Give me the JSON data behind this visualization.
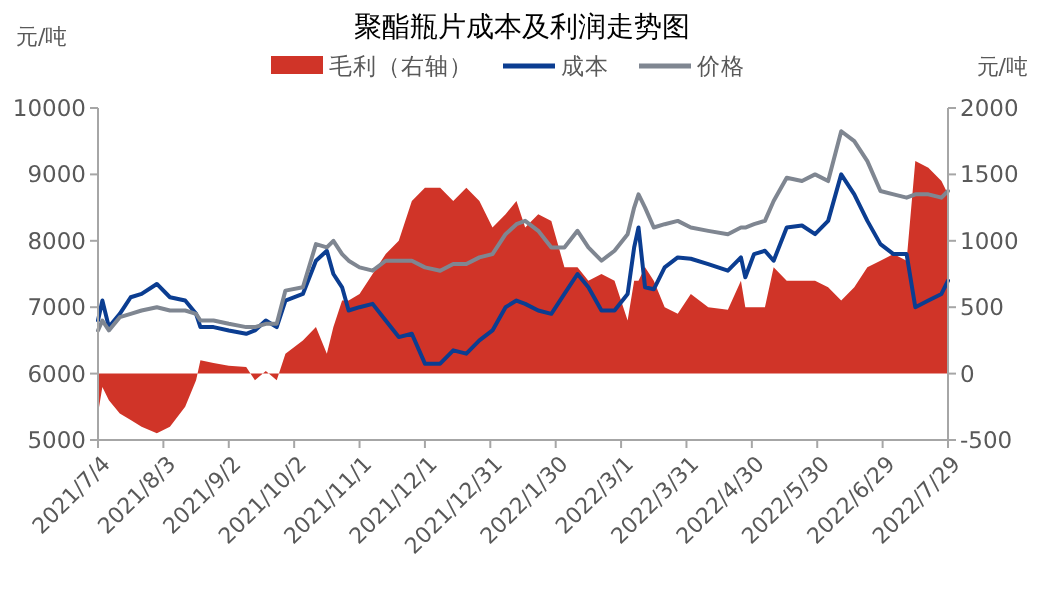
{
  "chart_data": {
    "type": "line",
    "title": "聚酯瓶片成本及利润走势图",
    "ylabel": "元/吨",
    "y2label": "元/吨",
    "legend": "top",
    "grid": false,
    "x": [
      "2021-07-04",
      "2021-07-06",
      "2021-07-09",
      "2021-07-14",
      "2021-07-19",
      "2021-07-24",
      "2021-07-31",
      "2021-08-06",
      "2021-08-13",
      "2021-08-18",
      "2021-08-20",
      "2021-08-26",
      "2021-09-02",
      "2021-09-10",
      "2021-09-14",
      "2021-09-19",
      "2021-09-24",
      "2021-09-28",
      "2021-10-06",
      "2021-10-12",
      "2021-10-17",
      "2021-10-20",
      "2021-10-24",
      "2021-10-27",
      "2021-11-01",
      "2021-11-07",
      "2021-11-13",
      "2021-11-19",
      "2021-11-25",
      "2021-12-01",
      "2021-12-08",
      "2021-12-14",
      "2021-12-20",
      "2021-12-26",
      "2022-01-01",
      "2022-01-07",
      "2022-01-12",
      "2022-01-16",
      "2022-01-22",
      "2022-01-28",
      "2022-02-03",
      "2022-02-09",
      "2022-02-14",
      "2022-02-20",
      "2022-02-26",
      "2022-03-04",
      "2022-03-07",
      "2022-03-09",
      "2022-03-12",
      "2022-03-16",
      "2022-03-21",
      "2022-03-27",
      "2022-04-02",
      "2022-04-10",
      "2022-04-19",
      "2022-04-25",
      "2022-04-27",
      "2022-05-01",
      "2022-05-06",
      "2022-05-10",
      "2022-05-16",
      "2022-05-23",
      "2022-05-29",
      "2022-06-04",
      "2022-06-10",
      "2022-06-16",
      "2022-06-22",
      "2022-06-28",
      "2022-07-04",
      "2022-07-10",
      "2022-07-14",
      "2022-07-20",
      "2022-07-26",
      "2022-07-29"
    ],
    "series": [
      {
        "name": "毛利（右轴）",
        "type": "area",
        "axis": "y2",
        "color": "#d03428",
        "values": [
          -300,
          -100,
          -200,
          -300,
          -350,
          -400,
          -450,
          -400,
          -250,
          -50,
          100,
          80,
          60,
          50,
          -50,
          20,
          -50,
          150,
          250,
          350,
          150,
          350,
          550,
          550,
          600,
          750,
          900,
          1000,
          1300,
          1400,
          1400,
          1300,
          1400,
          1300,
          1100,
          1200,
          1300,
          1100,
          1200,
          1150,
          800,
          800,
          700,
          750,
          700,
          400,
          700,
          700,
          800,
          700,
          500,
          450,
          600,
          500,
          480,
          700,
          500,
          500,
          500,
          800,
          700,
          700,
          700,
          650,
          550,
          650,
          800,
          850,
          900,
          850,
          1600,
          1550,
          1450,
          1350
        ]
      },
      {
        "name": "成本",
        "color": "#0b3d91",
        "values": [
          6800,
          7100,
          6700,
          6900,
          7150,
          7200,
          7350,
          7150,
          7100,
          6900,
          6700,
          6700,
          6650,
          6600,
          6650,
          6800,
          6700,
          7100,
          7200,
          7700,
          7850,
          7500,
          7300,
          6950,
          7000,
          7050,
          6800,
          6550,
          6600,
          6150,
          6150,
          6350,
          6300,
          6500,
          6650,
          7000,
          7100,
          7050,
          6950,
          6900,
          7200,
          7500,
          7300,
          6950,
          6950,
          7200,
          7900,
          8200,
          7300,
          7270,
          7600,
          7750,
          7730,
          7650,
          7550,
          7750,
          7450,
          7800,
          7850,
          7700,
          8200,
          8230,
          8100,
          8300,
          9000,
          8700,
          8300,
          7950,
          7800,
          7800,
          7000,
          7100,
          7200,
          7400
        ]
      },
      {
        "name": "价格",
        "color": "#7f8691",
        "values": [
          6650,
          6800,
          6650,
          6850,
          6900,
          6950,
          7000,
          6950,
          6950,
          6900,
          6800,
          6800,
          6750,
          6700,
          6700,
          6750,
          6750,
          7250,
          7300,
          7950,
          7900,
          8000,
          7800,
          7700,
          7600,
          7550,
          7700,
          7700,
          7700,
          7600,
          7550,
          7650,
          7650,
          7750,
          7800,
          8100,
          8250,
          8300,
          8150,
          7900,
          7900,
          8150,
          7900,
          7700,
          7850,
          8100,
          8500,
          8700,
          8500,
          8200,
          8250,
          8300,
          8200,
          8150,
          8100,
          8200,
          8200,
          8250,
          8300,
          8600,
          8950,
          8900,
          9000,
          8900,
          9650,
          9500,
          9200,
          8750,
          8700,
          8650,
          8700,
          8700,
          8650,
          8750
        ]
      }
    ],
    "xlim": [
      "2021-07-04",
      "2022-07-29"
    ],
    "xticks": [
      {
        "value": "2021-07-04",
        "label": "2021/7/4"
      },
      {
        "value": "2021-08-03",
        "label": "2021/8/3"
      },
      {
        "value": "2021-09-02",
        "label": "2021/9/2"
      },
      {
        "value": "2021-10-02",
        "label": "2021/10/2"
      },
      {
        "value": "2021-11-01",
        "label": "2021/11/1"
      },
      {
        "value": "2021-12-01",
        "label": "2021/12/1"
      },
      {
        "value": "2021-12-31",
        "label": "2021/12/31"
      },
      {
        "value": "2022-01-30",
        "label": "2022/1/30"
      },
      {
        "value": "2022-03-01",
        "label": "2022/3/1"
      },
      {
        "value": "2022-03-31",
        "label": "2022/3/31"
      },
      {
        "value": "2022-04-30",
        "label": "2022/4/30"
      },
      {
        "value": "2022-05-30",
        "label": "2022/5/30"
      },
      {
        "value": "2022-06-29",
        "label": "2022/6/29"
      },
      {
        "value": "2022-07-29",
        "label": "2022/7/29"
      }
    ],
    "ylim": [
      5000,
      10000
    ],
    "yticks": [
      5000,
      6000,
      7000,
      8000,
      9000,
      10000
    ],
    "y2lim": [
      -500,
      2000
    ],
    "y2ticks": [
      -500,
      0,
      500,
      1000,
      1500,
      2000
    ]
  }
}
